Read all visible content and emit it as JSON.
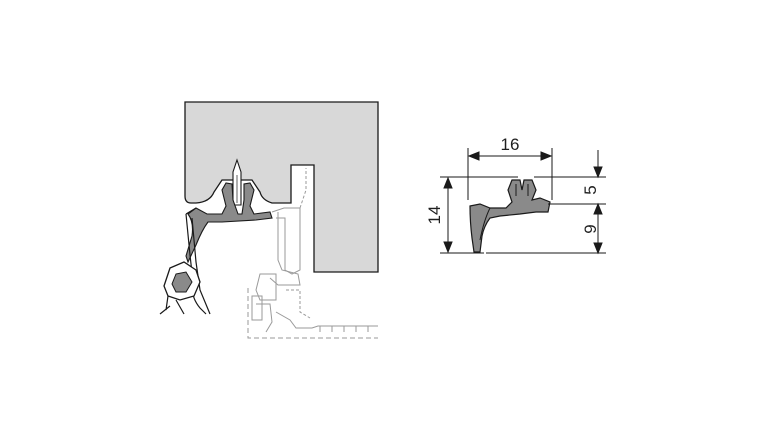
{
  "dimensions": {
    "width_label": "16",
    "total_height_label": "14",
    "top_height_label": "5",
    "bottom_height_label": "9"
  },
  "colors": {
    "panel_fill": "#d8d8d8",
    "seal_fill": "#8a8a8a",
    "line": "#1a1a1a",
    "frame_line": "#9a9a9a"
  }
}
